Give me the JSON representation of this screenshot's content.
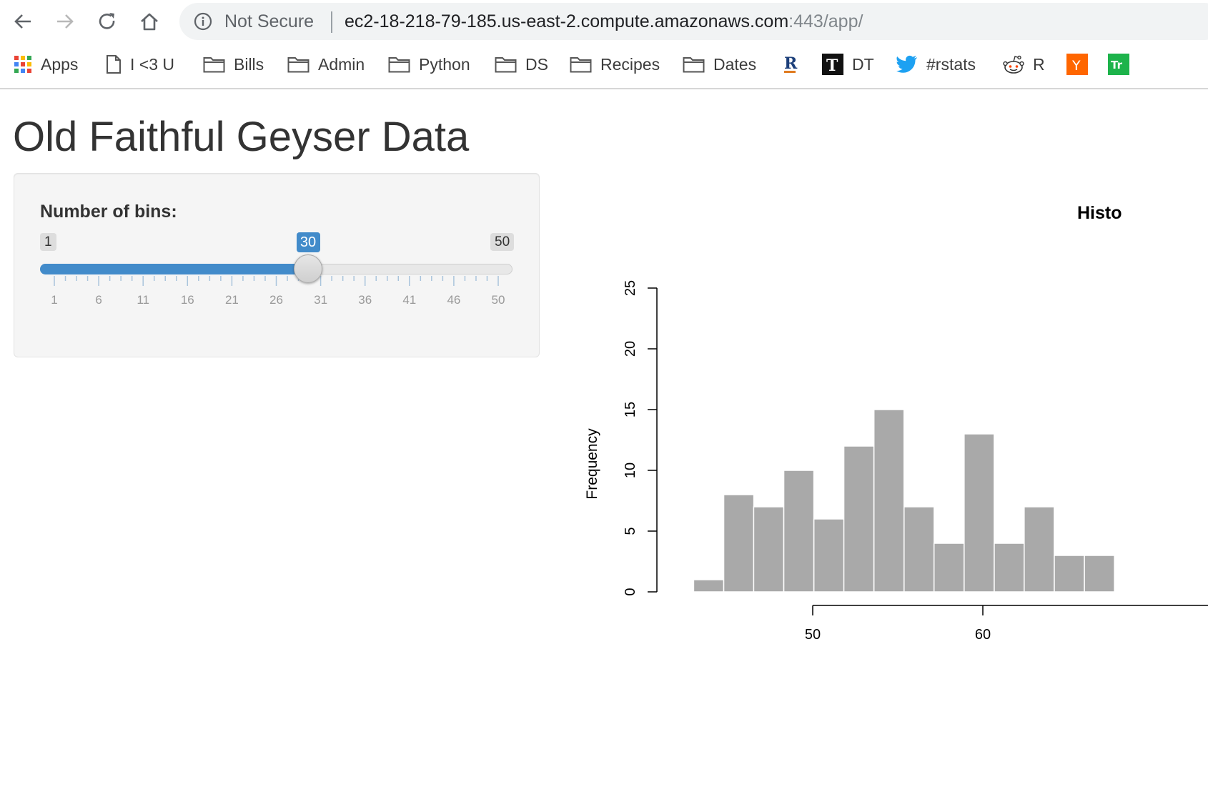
{
  "browser": {
    "security_label": "Not Secure",
    "url_host": "ec2-18-218-79-185.us-east-2.compute.amazonaws.com",
    "url_path": ":443/app/",
    "bookmarks": [
      {
        "label": "Apps",
        "icon": "apps-grid-icon"
      },
      {
        "label": "I <3 U",
        "icon": "page-icon"
      },
      {
        "label": "Bills",
        "icon": "folder-icon"
      },
      {
        "label": "Admin",
        "icon": "folder-icon"
      },
      {
        "label": "Python",
        "icon": "folder-icon"
      },
      {
        "label": "DS",
        "icon": "folder-icon"
      },
      {
        "label": "Recipes",
        "icon": "folder-icon"
      },
      {
        "label": "Dates",
        "icon": "folder-icon"
      },
      {
        "label": "",
        "icon": "r-bloggers-icon"
      },
      {
        "label": "DT",
        "icon": "t-logo-icon"
      },
      {
        "label": "#rstats",
        "icon": "twitter-bird-icon"
      },
      {
        "label": "R",
        "icon": "reddit-alien-icon"
      },
      {
        "label": "",
        "icon": "hacker-news-icon"
      },
      {
        "label": "",
        "icon": "green-site-icon"
      }
    ]
  },
  "page": {
    "title": "Old Faithful Geyser Data"
  },
  "sidebar": {
    "slider_label": "Number of bins:",
    "min_label": "1",
    "max_label": "50",
    "value_label": "30",
    "min": 1,
    "max": 50,
    "value": 30,
    "tick_labels": [
      "1",
      "6",
      "11",
      "16",
      "21",
      "26",
      "31",
      "36",
      "41",
      "46",
      "50"
    ]
  },
  "colors": {
    "slider_accent": "#428bca",
    "bar_fill": "#a9a9a9",
    "twitter": "#1da1f2",
    "hn": "#ff6600"
  },
  "chart_data": {
    "type": "bar",
    "title": "Histo",
    "ylabel": "Frequency",
    "xlabel": "",
    "ylim": [
      0,
      25
    ],
    "yticks": [
      0,
      5,
      10,
      15,
      20,
      25
    ],
    "xticks": [
      50,
      60
    ],
    "bin_width": 1.7667,
    "bins": [
      {
        "x0": 43.0,
        "count": 1
      },
      {
        "x0": 44.77,
        "count": 8
      },
      {
        "x0": 46.53,
        "count": 7
      },
      {
        "x0": 48.3,
        "count": 10
      },
      {
        "x0": 50.07,
        "count": 6
      },
      {
        "x0": 51.83,
        "count": 12
      },
      {
        "x0": 53.6,
        "count": 15
      },
      {
        "x0": 55.37,
        "count": 7
      },
      {
        "x0": 57.13,
        "count": 4
      },
      {
        "x0": 58.9,
        "count": 13
      },
      {
        "x0": 60.67,
        "count": 4
      },
      {
        "x0": 62.43,
        "count": 7
      },
      {
        "x0": 64.2,
        "count": 3
      },
      {
        "x0": 65.97,
        "count": 3
      }
    ]
  }
}
